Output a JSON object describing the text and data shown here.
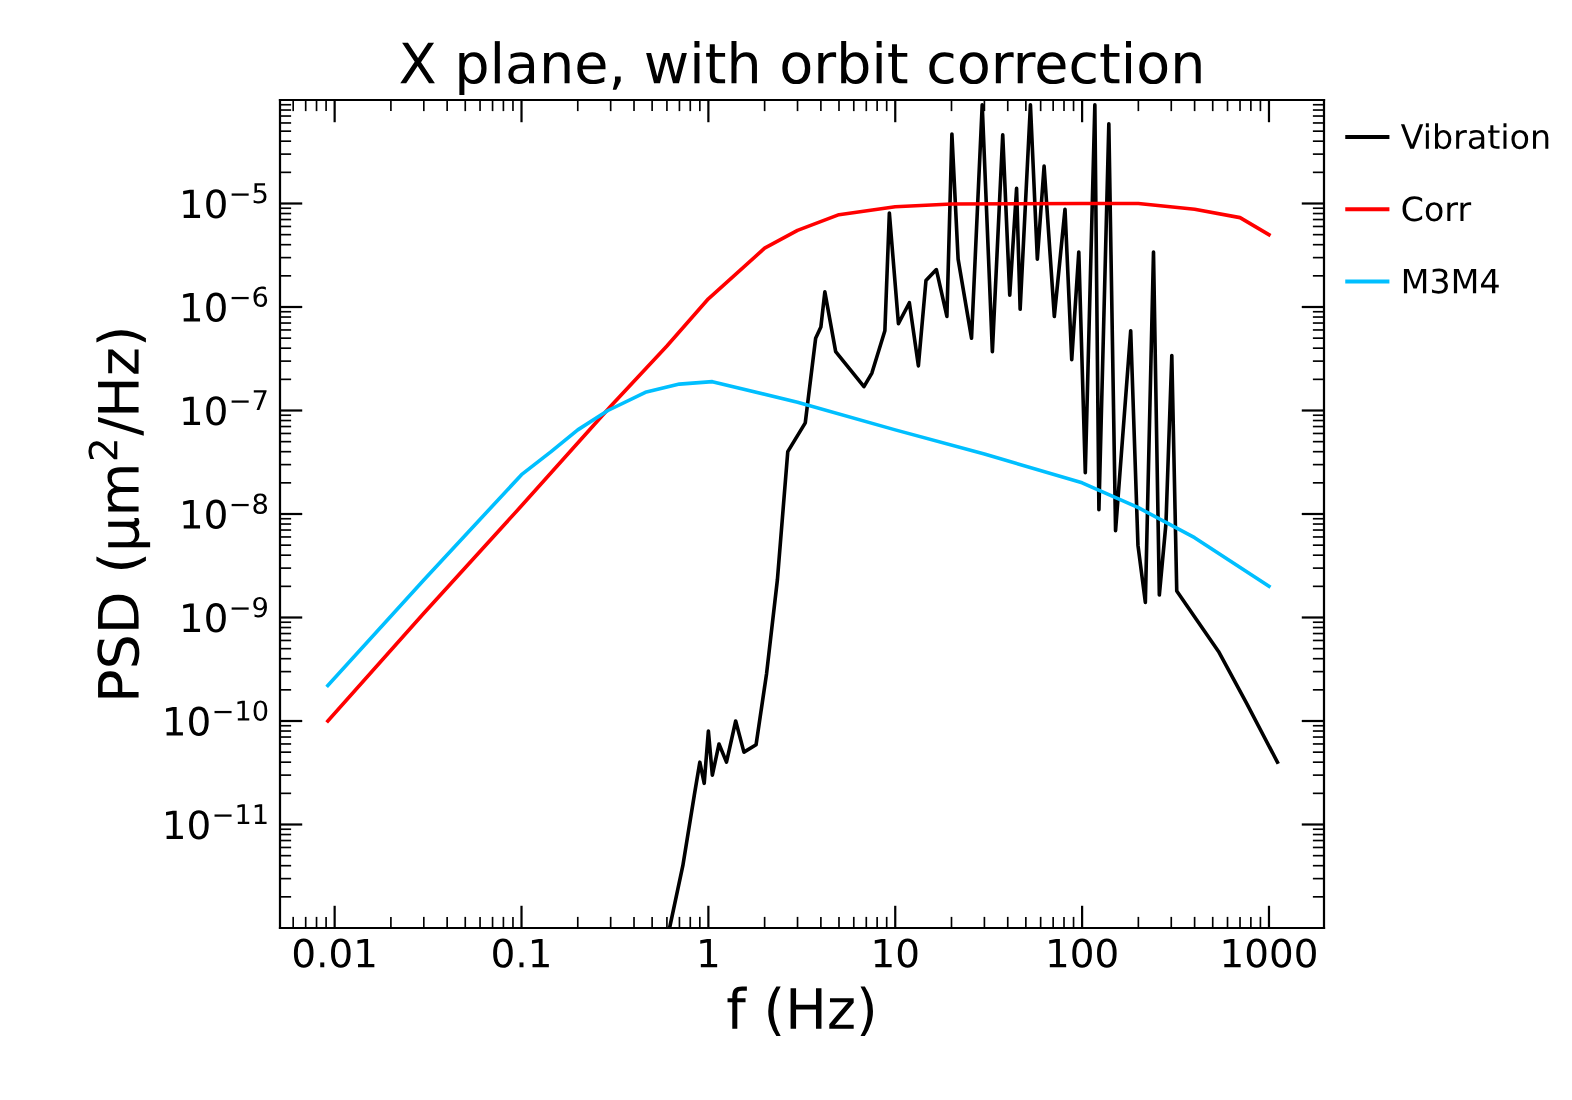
{
  "chart_data": {
    "type": "line",
    "title": "X plane, with orbit correction",
    "xlabel": "f (Hz)",
    "ylabel": "PSD (μm$^{2}$/Hz)",
    "log": "xy",
    "xlim": [
      0.0051,
      1970
    ],
    "ylim": [
      1e-12,
      0.0001
    ],
    "xticks": [
      0.01,
      0.1,
      1,
      10,
      100,
      1000
    ],
    "yticks": [
      {
        "value": 1e-11,
        "label": "10$^{−11}$"
      },
      {
        "value": 1e-10,
        "label": "10$^{−10}$"
      },
      {
        "value": 1e-09,
        "label": "10$^{−9}$"
      },
      {
        "value": 1e-08,
        "label": "10$^{−8}$"
      },
      {
        "value": 1e-07,
        "label": "10$^{−7}$"
      },
      {
        "value": 1e-06,
        "label": "10$^{−6}$"
      },
      {
        "value": 1e-05,
        "label": "10$^{−5}$"
      }
    ],
    "grid": false,
    "legend": "right",
    "series": [
      {
        "name": "Vibration",
        "color": "#000000",
        "x": [
          0.62,
          0.73,
          0.84,
          0.9,
          0.95,
          1.0,
          1.05,
          1.14,
          1.25,
          1.4,
          1.55,
          1.8,
          2.05,
          2.34,
          2.66,
          3.3,
          3.75,
          4.0,
          4.2,
          4.8,
          6.8,
          7.5,
          8.8,
          9.3,
          10.4,
          11.9,
          13.3,
          14.6,
          16.6,
          18.9,
          20.1,
          21.7,
          25.6,
          29.2,
          33.1,
          37.6,
          41,
          44.6,
          46.6,
          52.9,
          57.6,
          62.6,
          71,
          81,
          88,
          96,
          104,
          117,
          123,
          139,
          151,
          182,
          199,
          218,
          241,
          259,
          281,
          302,
          321,
          537,
          757,
          1110
        ],
        "values": [
          1e-12,
          4e-12,
          1.9e-11,
          4e-11,
          2.5e-11,
          8e-11,
          3e-11,
          6e-11,
          4e-11,
          1e-10,
          5e-11,
          5.9e-11,
          2.9e-10,
          2.3e-09,
          4e-08,
          7.6e-08,
          5e-07,
          6.4e-07,
          1.4e-06,
          3.7e-07,
          1.7e-07,
          2.3e-07,
          5.9e-07,
          8.1e-06,
          6.9e-07,
          1.1e-06,
          2.7e-07,
          1.8e-06,
          2.3e-06,
          8.1e-07,
          4.7e-05,
          2.9e-06,
          5e-07,
          9e-05,
          3.7e-07,
          4.6e-05,
          1.3e-06,
          1.4e-05,
          9.5e-07,
          9e-05,
          2.9e-06,
          2.3e-05,
          8.1e-07,
          8.8e-06,
          3.1e-07,
          3.4e-06,
          2.5e-08,
          9e-05,
          1.1e-08,
          5.9e-05,
          6.9e-09,
          5.9e-07,
          5e-09,
          1.4e-09,
          3.4e-06,
          1.65e-09,
          8.1e-09,
          3.4e-07,
          1.8e-09,
          4.7e-10,
          1.5e-10,
          4e-11
        ]
      },
      {
        "name": "Corr",
        "color": "#ff0000",
        "x": [
          0.0092,
          0.03,
          0.1,
          0.3,
          0.6,
          1.0,
          2.0,
          3,
          5,
          10,
          20,
          100,
          200,
          400,
          700,
          1000
        ],
        "values": [
          1e-10,
          1.1e-09,
          1.2e-08,
          1.1e-07,
          4.2e-07,
          1.2e-06,
          3.7e-06,
          5.5e-06,
          7.8e-06,
          9.3e-06,
          9.9e-06,
          1e-05,
          1e-05,
          8.8e-06,
          7.3e-06,
          5e-06
        ]
      },
      {
        "name": "M3M4",
        "color": "#00bfff",
        "x": [
          0.0092,
          0.03,
          0.1,
          0.144,
          0.2,
          0.29,
          0.46,
          0.7,
          1.05,
          3,
          10,
          30,
          100,
          200,
          400,
          1000
        ],
        "values": [
          2.2e-10,
          2.3e-09,
          2.4e-08,
          4e-08,
          6.5e-08,
          1e-07,
          1.5e-07,
          1.8e-07,
          1.9e-07,
          1.2e-07,
          6.5e-08,
          3.8e-08,
          2e-08,
          1.15e-08,
          5.9e-09,
          2e-09
        ]
      }
    ]
  }
}
